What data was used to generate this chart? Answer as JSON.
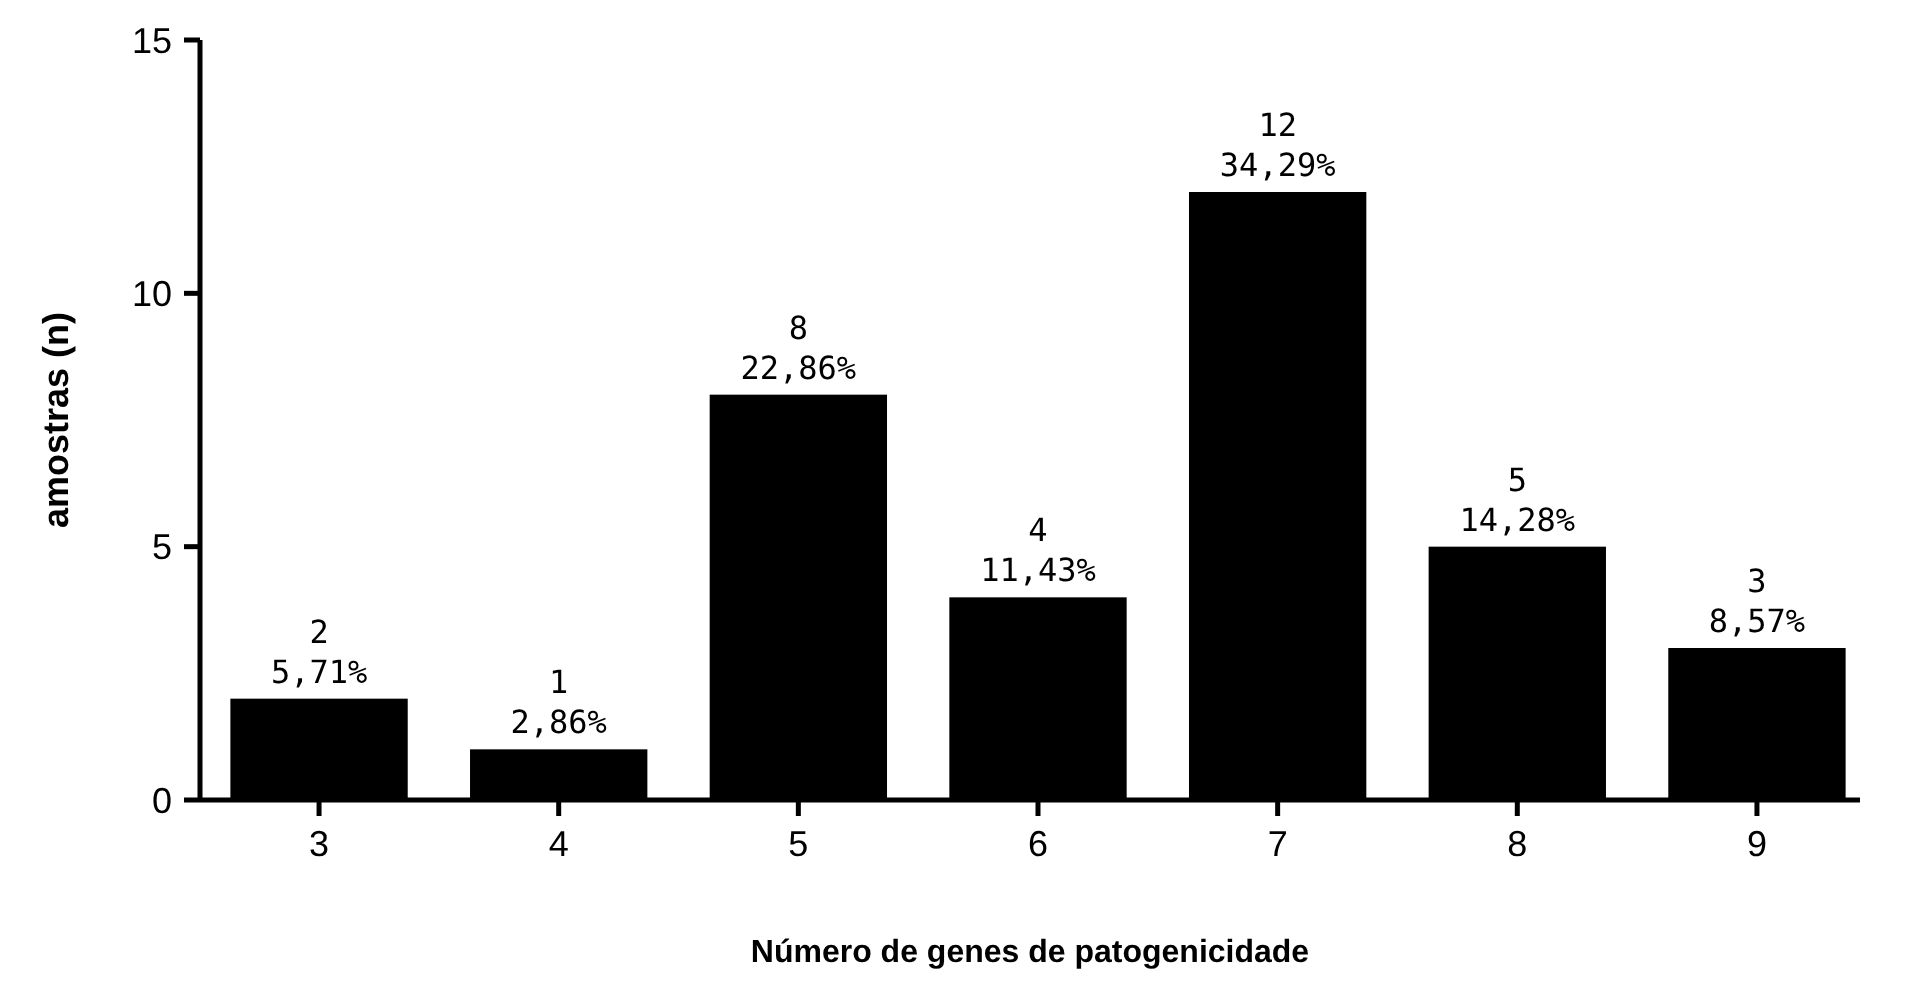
{
  "chart_data": {
    "type": "bar",
    "xlabel": "Número de genes de patogenicidade",
    "ylabel": "amostras (n)",
    "categories": [
      "3",
      "4",
      "5",
      "6",
      "7",
      "8",
      "9"
    ],
    "values": [
      2,
      1,
      8,
      4,
      12,
      5,
      3
    ],
    "value_labels": [
      "2\n5,71%",
      "1\n2,86%",
      "8\n22,86%",
      "4\n11,43%",
      "12\n34,29%",
      "5\n14,28%",
      "3\n8,57%"
    ],
    "color": "#000000",
    "ylim": [
      0,
      15
    ],
    "yticks": [
      0,
      5,
      10,
      15
    ],
    "grid": false
  }
}
